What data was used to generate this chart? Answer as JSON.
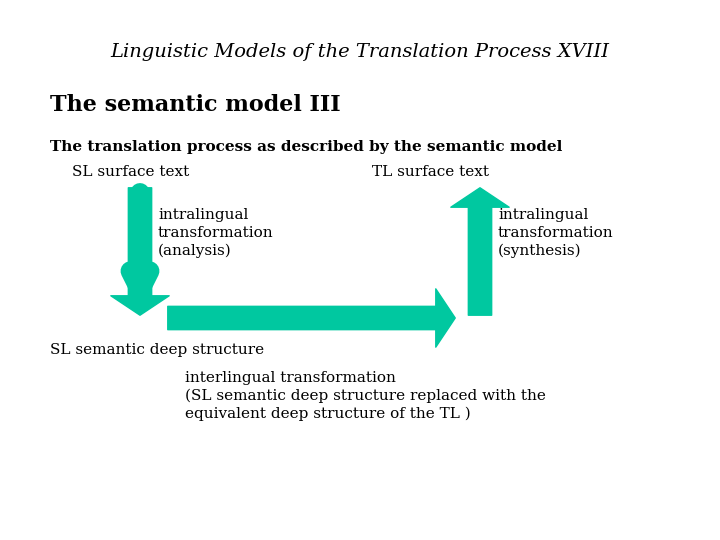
{
  "title": "Linguistic Models of the Translation Process XVIII",
  "subtitle": "The semantic model III",
  "bold_line": "The translation process as described by the semantic model",
  "sl_surface": "SL surface text",
  "tl_surface": "TL surface text",
  "sl_deep": "SL semantic deep structure",
  "intralingual_analysis_line1": "intralingual",
  "intralingual_analysis_line2": "transformation",
  "intralingual_analysis_line3": "(analysis)",
  "intralingual_synthesis_line1": "intralingual",
  "intralingual_synthesis_line2": "transformation",
  "intralingual_synthesis_line3": "(synthesis)",
  "interlingual_line1": "interlingual transformation",
  "interlingual_line2": "(SL semantic deep structure replaced with the",
  "interlingual_line3": "equivalent deep structure of the TL )",
  "arrow_color": "#00C8A0",
  "bg_color": "#ffffff",
  "text_color": "#000000"
}
